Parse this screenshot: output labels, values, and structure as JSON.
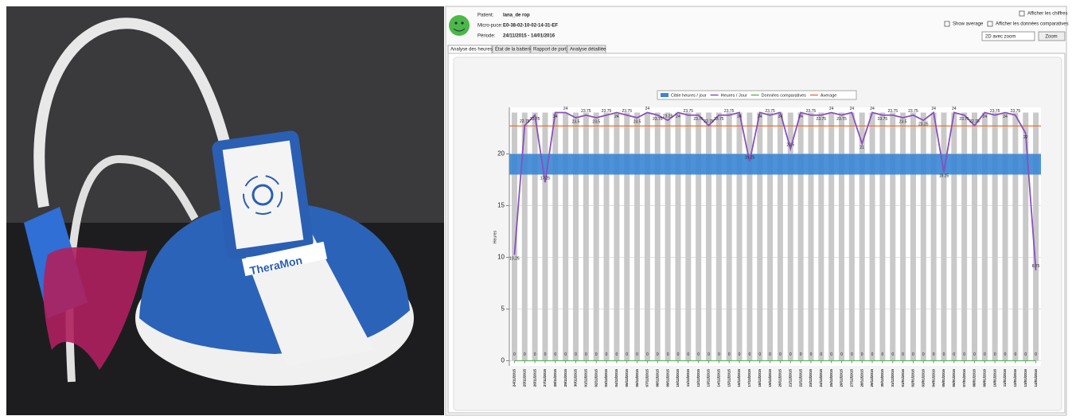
{
  "photo": {
    "device_label": "TheraMon"
  },
  "header": {
    "patient_label": "Patient:",
    "patient": "lana_de rop",
    "chip_label": "Micro-puce:",
    "chip": "E0-38-02-10-02-14-31-EF",
    "period_label": "Période:",
    "period": "24/11/2015  -  14/01/2016",
    "show_figures": "Afficher les chiffres",
    "show_average": "Show average",
    "show_comparative": "Afficher les données comparatives",
    "view_mode": "2D avec zoom",
    "zoom_button": "Zoom"
  },
  "tabs": [
    "Analyse des heures",
    "État de la batterie",
    "Rapport de port",
    "Analyse détaillée"
  ],
  "chart_data": {
    "type": "line",
    "y_label": "Heures",
    "x": [
      "24/11/2015",
      "25/11/2015",
      "26/11/2015",
      "27/11/2015",
      "28/11/2015",
      "29/11/2015",
      "30/11/2015",
      "01/12/2015",
      "02/12/2015",
      "03/12/2015",
      "04/12/2015",
      "05/12/2015",
      "06/12/2015",
      "07/12/2015",
      "08/12/2015",
      "09/12/2015",
      "10/12/2015",
      "11/12/2015",
      "12/12/2015",
      "13/12/2015",
      "14/12/2015",
      "15/12/2015",
      "16/12/2015",
      "17/12/2015",
      "18/12/2015",
      "19/12/2015",
      "20/12/2015",
      "21/12/2015",
      "22/12/2015",
      "23/12/2015",
      "24/12/2015",
      "25/12/2015",
      "26/12/2015",
      "27/12/2015",
      "28/12/2015",
      "29/12/2015",
      "30/12/2015",
      "31/12/2015",
      "01/01/2016",
      "02/01/2016",
      "03/01/2016",
      "04/01/2016",
      "05/01/2016",
      "06/01/2016",
      "07/01/2016",
      "08/01/2016",
      "09/01/2016",
      "10/01/2016",
      "11/01/2016",
      "12/01/2016",
      "13/01/2016",
      "14/01/2016"
    ],
    "target": {
      "name": "Cible heures / jour",
      "color": "#3a86d4",
      "range": [
        18,
        20
      ]
    },
    "series": [
      {
        "name": "Heures / Jour",
        "color": "#8a4fbf",
        "values": [
          10.25,
          22.75,
          23.75,
          17.25,
          24,
          24,
          23.5,
          23.75,
          23.5,
          23.75,
          24,
          23.75,
          23.5,
          24,
          23.75,
          23.25,
          24,
          23.75,
          23.75,
          22.75,
          23.75,
          23.75,
          24,
          19.25,
          24,
          23.75,
          24,
          20.5,
          24,
          23.75,
          23.75,
          24,
          23.75,
          24,
          21,
          24,
          23.75,
          23.75,
          23.5,
          23.75,
          23.25,
          24,
          18.25,
          24,
          23.75,
          22.75,
          24,
          23.75,
          24,
          23.75,
          22,
          8.75
        ]
      },
      {
        "name": "Données comparatives",
        "color": "#5cb85c",
        "values": [
          0,
          0,
          0,
          0,
          0,
          0,
          0,
          0,
          0,
          0,
          0,
          0,
          0,
          0,
          0,
          0,
          0,
          0,
          0,
          0,
          0,
          0,
          0,
          0,
          0,
          0,
          0,
          0,
          0,
          0,
          0,
          0,
          0,
          0,
          0,
          0,
          0,
          0,
          0,
          0,
          0,
          0,
          0,
          0,
          0,
          0,
          0,
          0,
          0,
          0,
          0,
          0
        ]
      }
    ],
    "average": {
      "name": "Average",
      "color": "#e8743b",
      "value": 22.7
    },
    "day_bars": {
      "color": "#c9c9c9",
      "value": 24
    },
    "ylim": [
      -0.5,
      24.5
    ],
    "yticks": [
      0,
      5,
      10,
      15,
      20
    ],
    "grid": true
  }
}
